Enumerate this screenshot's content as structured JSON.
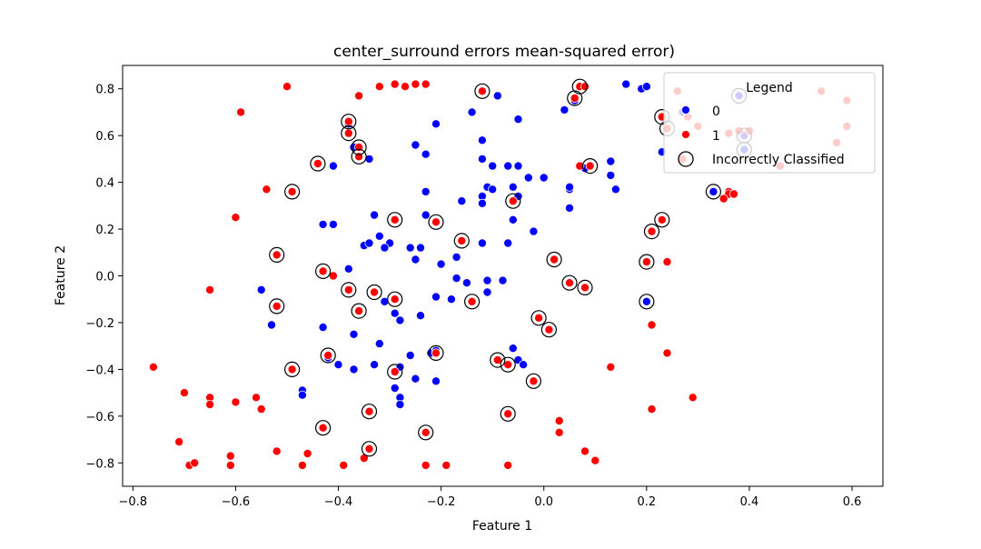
{
  "chart_data": {
    "type": "scatter",
    "title": "center_surround errors mean-squared error)",
    "xlabel": "Feature 1",
    "ylabel": "Feature 2",
    "xlim": [
      -0.82,
      0.66
    ],
    "ylim": [
      -0.9,
      0.9
    ],
    "xticks": [
      -0.8,
      -0.6,
      -0.4,
      -0.2,
      0.0,
      0.2,
      0.4,
      0.6
    ],
    "xtick_labels": [
      "−0.8",
      "−0.6",
      "−0.4",
      "−0.2",
      "0.0",
      "0.2",
      "0.4",
      "0.6"
    ],
    "yticks": [
      -0.8,
      -0.6,
      -0.4,
      -0.2,
      0.0,
      0.2,
      0.4,
      0.6,
      0.8
    ],
    "ytick_labels": [
      "−0.8",
      "−0.6",
      "−0.4",
      "−0.2",
      "0.0",
      "0.2",
      "0.4",
      "0.6",
      "0.8"
    ],
    "grid": false,
    "legend": {
      "title": "Legend",
      "placement": "upper right",
      "entries": [
        "0",
        "1",
        "Incorrectly Classified"
      ]
    },
    "colors": {
      "class_0": "#0000ff",
      "class_1": "#ff0000",
      "incorrect_ring": "#000000"
    },
    "series": [
      {
        "name": "0",
        "color": "#0000ff",
        "points": [
          [
            -0.12,
            0.79
          ],
          [
            -0.09,
            0.77
          ],
          [
            -0.14,
            0.7
          ],
          [
            -0.05,
            0.67
          ],
          [
            -0.21,
            0.65
          ],
          [
            -0.38,
            0.65
          ],
          [
            -0.37,
            0.55
          ],
          [
            -0.25,
            0.56
          ],
          [
            -0.23,
            0.52
          ],
          [
            -0.12,
            0.58
          ],
          [
            -0.34,
            0.5
          ],
          [
            -0.12,
            0.5
          ],
          [
            -0.1,
            0.47
          ],
          [
            -0.07,
            0.47
          ],
          [
            -0.05,
            0.47
          ],
          [
            -0.41,
            0.47
          ],
          [
            -0.03,
            0.42
          ],
          [
            0.0,
            0.42
          ],
          [
            0.05,
            0.37
          ],
          [
            0.05,
            0.38
          ],
          [
            -0.23,
            0.36
          ],
          [
            -0.11,
            0.38
          ],
          [
            -0.1,
            0.37
          ],
          [
            -0.06,
            0.38
          ],
          [
            -0.05,
            0.34
          ],
          [
            -0.12,
            0.34
          ],
          [
            -0.16,
            0.32
          ],
          [
            0.05,
            0.29
          ],
          [
            -0.33,
            0.26
          ],
          [
            -0.23,
            0.26
          ],
          [
            -0.12,
            0.31
          ],
          [
            -0.06,
            0.24
          ],
          [
            -0.43,
            0.22
          ],
          [
            -0.41,
            0.22
          ],
          [
            -0.32,
            0.17
          ],
          [
            -0.3,
            0.14
          ],
          [
            -0.35,
            0.13
          ],
          [
            -0.34,
            0.14
          ],
          [
            -0.31,
            0.12
          ],
          [
            -0.26,
            0.12
          ],
          [
            -0.24,
            0.12
          ],
          [
            -0.07,
            0.14
          ],
          [
            -0.12,
            0.14
          ],
          [
            -0.02,
            0.19
          ],
          [
            -0.25,
            0.07
          ],
          [
            -0.2,
            0.05
          ],
          [
            -0.38,
            0.03
          ],
          [
            -0.17,
            0.08
          ],
          [
            -0.17,
            -0.01
          ],
          [
            -0.15,
            -0.03
          ],
          [
            -0.11,
            -0.02
          ],
          [
            -0.08,
            -0.02
          ],
          [
            -0.55,
            -0.06
          ],
          [
            -0.31,
            -0.11
          ],
          [
            -0.21,
            -0.09
          ],
          [
            -0.11,
            -0.07
          ],
          [
            -0.53,
            -0.21
          ],
          [
            -0.29,
            -0.16
          ],
          [
            -0.28,
            -0.19
          ],
          [
            -0.24,
            -0.17
          ],
          [
            -0.18,
            -0.1
          ],
          [
            -0.43,
            -0.22
          ],
          [
            -0.37,
            -0.25
          ],
          [
            -0.32,
            -0.29
          ],
          [
            -0.42,
            -0.35
          ],
          [
            -0.26,
            -0.34
          ],
          [
            -0.22,
            -0.33
          ],
          [
            -0.21,
            -0.32
          ],
          [
            -0.4,
            -0.38
          ],
          [
            -0.37,
            -0.4
          ],
          [
            -0.33,
            -0.38
          ],
          [
            -0.28,
            -0.39
          ],
          [
            -0.06,
            -0.31
          ],
          [
            -0.05,
            -0.36
          ],
          [
            -0.04,
            -0.38
          ],
          [
            -0.29,
            -0.48
          ],
          [
            -0.25,
            -0.44
          ],
          [
            -0.21,
            -0.45
          ],
          [
            -0.47,
            -0.49
          ],
          [
            -0.47,
            -0.51
          ],
          [
            -0.28,
            -0.52
          ],
          [
            -0.28,
            -0.55
          ],
          [
            0.07,
            0.81
          ],
          [
            0.16,
            0.82
          ],
          [
            0.19,
            0.8
          ],
          [
            0.2,
            0.81
          ],
          [
            0.04,
            0.71
          ],
          [
            0.06,
            0.75
          ],
          [
            0.08,
            0.46
          ],
          [
            0.13,
            0.49
          ],
          [
            0.13,
            0.43
          ],
          [
            0.14,
            0.37
          ],
          [
            0.23,
            0.53
          ],
          [
            0.38,
            0.77
          ],
          [
            0.39,
            0.6
          ],
          [
            0.39,
            0.54
          ],
          [
            0.33,
            0.36
          ],
          [
            0.2,
            -0.11
          ],
          [
            0.27,
            0.7
          ]
        ]
      },
      {
        "name": "1",
        "color": "#ff0000",
        "points": [
          [
            -0.5,
            0.81
          ],
          [
            -0.36,
            0.77
          ],
          [
            -0.32,
            0.81
          ],
          [
            -0.29,
            0.82
          ],
          [
            -0.27,
            0.81
          ],
          [
            -0.25,
            0.82
          ],
          [
            -0.23,
            0.82
          ],
          [
            -0.12,
            0.79
          ],
          [
            -0.59,
            0.7
          ],
          [
            -0.38,
            0.66
          ],
          [
            -0.38,
            0.61
          ],
          [
            -0.36,
            0.55
          ],
          [
            -0.36,
            0.51
          ],
          [
            -0.44,
            0.48
          ],
          [
            -0.54,
            0.37
          ],
          [
            -0.49,
            0.36
          ],
          [
            -0.6,
            0.25
          ],
          [
            -0.29,
            0.24
          ],
          [
            -0.21,
            0.23
          ],
          [
            -0.06,
            0.32
          ],
          [
            -0.52,
            0.09
          ],
          [
            -0.16,
            0.15
          ],
          [
            -0.43,
            0.02
          ],
          [
            -0.41,
            0.0
          ],
          [
            -0.65,
            -0.06
          ],
          [
            -0.38,
            -0.06
          ],
          [
            -0.33,
            -0.07
          ],
          [
            -0.29,
            -0.1
          ],
          [
            -0.14,
            -0.11
          ],
          [
            -0.52,
            -0.13
          ],
          [
            -0.36,
            -0.15
          ],
          [
            -0.49,
            -0.4
          ],
          [
            -0.42,
            -0.34
          ],
          [
            -0.21,
            -0.33
          ],
          [
            -0.29,
            -0.41
          ],
          [
            -0.09,
            -0.36
          ],
          [
            -0.07,
            -0.38
          ],
          [
            -0.02,
            -0.45
          ],
          [
            -0.01,
            -0.18
          ],
          [
            0.01,
            -0.23
          ],
          [
            0.02,
            0.07
          ],
          [
            0.05,
            -0.03
          ],
          [
            0.08,
            -0.05
          ],
          [
            0.06,
            0.76
          ],
          [
            0.07,
            0.81
          ],
          [
            0.08,
            0.81
          ],
          [
            0.09,
            0.47
          ],
          [
            0.07,
            0.47
          ],
          [
            0.2,
            0.06
          ],
          [
            0.21,
            0.19
          ],
          [
            0.23,
            0.24
          ],
          [
            0.24,
            0.06
          ],
          [
            0.23,
            0.68
          ],
          [
            0.24,
            0.63
          ],
          [
            0.26,
            0.79
          ],
          [
            0.28,
            0.68
          ],
          [
            0.3,
            0.64
          ],
          [
            0.36,
            0.61
          ],
          [
            0.38,
            0.62
          ],
          [
            0.4,
            0.62
          ],
          [
            0.27,
            0.5
          ],
          [
            0.46,
            0.47
          ],
          [
            0.54,
            0.79
          ],
          [
            0.59,
            0.75
          ],
          [
            0.57,
            0.57
          ],
          [
            0.59,
            0.64
          ],
          [
            0.36,
            0.36
          ],
          [
            0.36,
            0.35
          ],
          [
            0.37,
            0.35
          ],
          [
            0.35,
            0.33
          ],
          [
            0.21,
            -0.21
          ],
          [
            0.24,
            -0.33
          ],
          [
            0.21,
            -0.57
          ],
          [
            0.29,
            -0.52
          ],
          [
            0.13,
            -0.39
          ],
          [
            0.03,
            -0.62
          ],
          [
            0.03,
            -0.67
          ],
          [
            0.08,
            -0.75
          ],
          [
            0.1,
            -0.79
          ],
          [
            -0.07,
            -0.59
          ],
          [
            -0.07,
            -0.81
          ],
          [
            -0.19,
            -0.81
          ],
          [
            -0.23,
            -0.67
          ],
          [
            -0.23,
            -0.81
          ],
          [
            -0.34,
            -0.58
          ],
          [
            -0.34,
            -0.74
          ],
          [
            -0.35,
            -0.78
          ],
          [
            -0.39,
            -0.81
          ],
          [
            -0.43,
            -0.65
          ],
          [
            -0.46,
            -0.76
          ],
          [
            -0.47,
            -0.81
          ],
          [
            -0.52,
            -0.75
          ],
          [
            -0.61,
            -0.77
          ],
          [
            -0.61,
            -0.81
          ],
          [
            -0.55,
            -0.57
          ],
          [
            -0.56,
            -0.52
          ],
          [
            -0.6,
            -0.54
          ],
          [
            -0.65,
            -0.52
          ],
          [
            -0.65,
            -0.55
          ],
          [
            -0.7,
            -0.5
          ],
          [
            -0.71,
            -0.71
          ],
          [
            -0.69,
            -0.81
          ],
          [
            -0.68,
            -0.8
          ],
          [
            -0.76,
            -0.39
          ]
        ]
      }
    ],
    "incorrectly_classified": [
      [
        -0.12,
        0.79
      ],
      [
        0.07,
        0.81
      ],
      [
        0.06,
        0.76
      ],
      [
        -0.38,
        0.66
      ],
      [
        -0.38,
        0.61
      ],
      [
        -0.36,
        0.55
      ],
      [
        -0.36,
        0.51
      ],
      [
        -0.44,
        0.48
      ],
      [
        -0.49,
        0.36
      ],
      [
        -0.29,
        0.24
      ],
      [
        -0.21,
        0.23
      ],
      [
        -0.06,
        0.32
      ],
      [
        -0.16,
        0.15
      ],
      [
        -0.52,
        0.09
      ],
      [
        -0.43,
        0.02
      ],
      [
        -0.38,
        -0.06
      ],
      [
        -0.33,
        -0.07
      ],
      [
        -0.29,
        -0.1
      ],
      [
        -0.14,
        -0.11
      ],
      [
        -0.52,
        -0.13
      ],
      [
        -0.36,
        -0.15
      ],
      [
        -0.49,
        -0.4
      ],
      [
        -0.42,
        -0.34
      ],
      [
        -0.21,
        -0.33
      ],
      [
        -0.29,
        -0.41
      ],
      [
        -0.09,
        -0.36
      ],
      [
        -0.07,
        -0.38
      ],
      [
        -0.02,
        -0.45
      ],
      [
        -0.01,
        -0.18
      ],
      [
        0.01,
        -0.23
      ],
      [
        0.02,
        0.07
      ],
      [
        0.05,
        -0.03
      ],
      [
        0.08,
        -0.05
      ],
      [
        0.09,
        0.47
      ],
      [
        0.2,
        0.06
      ],
      [
        0.21,
        0.19
      ],
      [
        0.23,
        0.24
      ],
      [
        0.23,
        0.68
      ],
      [
        0.24,
        0.63
      ],
      [
        0.33,
        0.36
      ],
      [
        0.38,
        0.77
      ],
      [
        0.39,
        0.6
      ],
      [
        0.39,
        0.54
      ],
      [
        0.2,
        -0.11
      ],
      [
        -0.34,
        -0.58
      ],
      [
        -0.34,
        -0.74
      ],
      [
        -0.23,
        -0.67
      ],
      [
        -0.43,
        -0.65
      ],
      [
        -0.07,
        -0.59
      ]
    ]
  }
}
